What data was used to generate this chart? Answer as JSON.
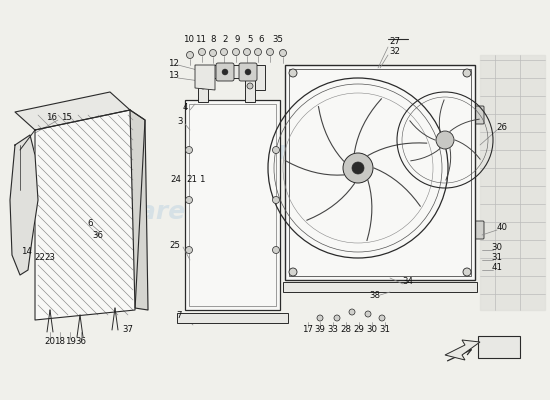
{
  "bg_color": "#f0f0eb",
  "wm_color": "#b8cfe0",
  "wm_alpha": 0.45,
  "lc": "#2a2a2a",
  "lc_light": "#888888",
  "lc_mid": "#555555",
  "fan_blade_color": "#444444",
  "bg_component_color": "#d8d8d5",
  "fill_light": "#e8e8e4",
  "fill_white": "#f8f8f6"
}
